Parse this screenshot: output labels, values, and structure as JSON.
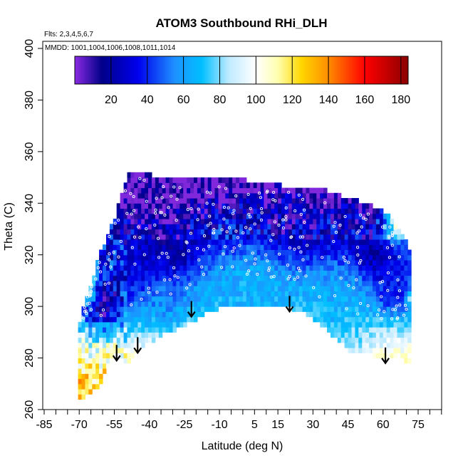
{
  "chart_data": {
    "type": "heatmap",
    "title": "ATOM3 Southbound RHi_DLH",
    "annotations": [
      "Flts: 2,3,4,5,6,7",
      "MMDD: 1001,1004,1006,1008,1011,1014"
    ],
    "xlabel": "Latitude (deg N)",
    "ylabel": "Theta (C)",
    "xlim": [
      -85,
      85
    ],
    "ylim": [
      260,
      400
    ],
    "x_ticks": [
      -85,
      -70,
      -55,
      -40,
      -25,
      -10,
      5,
      15,
      30,
      45,
      60,
      75
    ],
    "x_tick_labels": [
      "-85",
      "-70",
      "-55",
      "-40",
      "-25",
      "-10",
      "5",
      "15",
      "30",
      "45",
      "60",
      "75"
    ],
    "y_ticks": [
      260,
      280,
      300,
      320,
      340,
      360,
      380,
      400
    ],
    "y_tick_labels": [
      "260",
      "280",
      "300",
      "320",
      "340",
      "360",
      "380",
      "400"
    ],
    "colorbar": {
      "ticks": [
        20,
        40,
        60,
        80,
        100,
        120,
        140,
        160,
        180
      ],
      "tick_labels": [
        "20",
        "40",
        "60",
        "80",
        "100",
        "120",
        "140",
        "160",
        "180"
      ],
      "range": [
        0,
        184
      ],
      "stops": [
        {
          "v": 0,
          "color": "#8a2be2"
        },
        {
          "v": 15,
          "color": "#000088"
        },
        {
          "v": 35,
          "color": "#0000ee"
        },
        {
          "v": 55,
          "color": "#1e90ff"
        },
        {
          "v": 70,
          "color": "#00bfff"
        },
        {
          "v": 85,
          "color": "#bfeaff"
        },
        {
          "v": 100,
          "color": "#ffffff"
        },
        {
          "v": 112,
          "color": "#ffffb0"
        },
        {
          "v": 125,
          "color": "#ffd700"
        },
        {
          "v": 140,
          "color": "#ff8c00"
        },
        {
          "v": 160,
          "color": "#ff0000"
        },
        {
          "v": 184,
          "color": "#8b0000"
        }
      ]
    },
    "arrows": [
      {
        "lat": -54,
        "theta": 279
      },
      {
        "lat": -45,
        "theta": 282
      },
      {
        "lat": -22,
        "theta": 296
      },
      {
        "lat": 20,
        "theta": 298
      },
      {
        "lat": 61,
        "theta": 278
      }
    ],
    "domain_edges": [
      {
        "lat": -71,
        "bottom": 263,
        "top": 292
      },
      {
        "lat": -66,
        "bottom": 265,
        "top": 307
      },
      {
        "lat": -62,
        "bottom": 269,
        "top": 319
      },
      {
        "lat": -58,
        "bottom": 276,
        "top": 328
      },
      {
        "lat": -55,
        "bottom": 281,
        "top": 335
      },
      {
        "lat": -50,
        "bottom": 277,
        "top": 351
      },
      {
        "lat": -45,
        "bottom": 283,
        "top": 351
      },
      {
        "lat": -35,
        "bottom": 288,
        "top": 349
      },
      {
        "lat": -25,
        "bottom": 292,
        "top": 349
      },
      {
        "lat": -15,
        "bottom": 297,
        "top": 349
      },
      {
        "lat": -5,
        "bottom": 300,
        "top": 349
      },
      {
        "lat": 5,
        "bottom": 300,
        "top": 347
      },
      {
        "lat": 15,
        "bottom": 299,
        "top": 346
      },
      {
        "lat": 25,
        "bottom": 297,
        "top": 345
      },
      {
        "lat": 35,
        "bottom": 290,
        "top": 344
      },
      {
        "lat": 45,
        "bottom": 282,
        "top": 341
      },
      {
        "lat": 55,
        "bottom": 280,
        "top": 338
      },
      {
        "lat": 62,
        "bottom": 279,
        "top": 334
      },
      {
        "lat": 68,
        "bottom": 278,
        "top": 327
      },
      {
        "lat": 71,
        "bottom": 278,
        "top": 319
      }
    ],
    "fields": [
      {
        "lat": -60,
        "theta": 300,
        "value": 15,
        "spread": 10
      },
      {
        "lat": -62,
        "theta": 325,
        "value": 35,
        "spread": 10
      },
      {
        "lat": -40,
        "theta": 345,
        "value": 2,
        "spread": 14
      },
      {
        "lat": -30,
        "theta": 320,
        "value": 20,
        "spread": 12
      },
      {
        "lat": -45,
        "theta": 315,
        "value": 30,
        "spread": 10
      },
      {
        "lat": -5,
        "theta": 330,
        "value": 25,
        "spread": 10
      },
      {
        "lat": 15,
        "theta": 335,
        "value": 15,
        "spread": 12
      },
      {
        "lat": 30,
        "theta": 330,
        "value": 25,
        "spread": 12
      },
      {
        "lat": 55,
        "theta": 320,
        "value": 20,
        "spread": 10
      },
      {
        "lat": 65,
        "theta": 305,
        "value": 35,
        "spread": 10
      },
      {
        "lat": 40,
        "theta": 300,
        "value": 65,
        "spread": 15
      },
      {
        "lat": 0,
        "theta": 308,
        "value": 65,
        "spread": 18
      },
      {
        "lat": -35,
        "theta": 300,
        "value": 60,
        "spread": 12
      },
      {
        "lat": -68,
        "theta": 305,
        "value": 110,
        "spread": 5
      },
      {
        "lat": -75,
        "theta": 292,
        "value": 85,
        "spread": 6
      },
      {
        "lat": 65,
        "theta": 330,
        "value": 95,
        "spread": 6
      },
      {
        "lat": 45,
        "theta": 288,
        "value": 85,
        "spread": 7
      },
      {
        "lat": 72,
        "theta": 302,
        "value": 115,
        "spread": 3
      }
    ]
  }
}
